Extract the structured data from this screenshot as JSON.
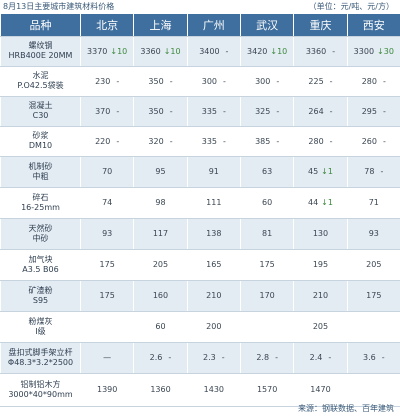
{
  "caption": "8月13日主要城市建筑材料价格",
  "unit": "（单位：元/吨、元/方）",
  "source": "来源：钢联数据、百年建筑",
  "headers": [
    "品种",
    "北京",
    "上海",
    "广州",
    "武汉",
    "重庆",
    "西安"
  ],
  "rows": [
    {
      "name": [
        "螺纹钢",
        "HRB400E 20MM"
      ],
      "cells": [
        {
          "v": "3370",
          "arrow": "↓",
          "dir": "down",
          "d": "10"
        },
        {
          "v": "3360",
          "arrow": "↓",
          "dir": "down",
          "d": "10"
        },
        {
          "v": "3400",
          "sep": "-"
        },
        {
          "v": "3420",
          "arrow": "↓",
          "dir": "down",
          "d": "10"
        },
        {
          "v": "3360",
          "sep": "-"
        },
        {
          "v": "3300",
          "arrow": "↓",
          "dir": "down",
          "d": "30"
        }
      ]
    },
    {
      "name": [
        "水泥",
        "P.O42.5袋装"
      ],
      "cells": [
        {
          "v": "230",
          "sep": "-"
        },
        {
          "v": "350",
          "sep": "-"
        },
        {
          "v": "300",
          "sep": "-"
        },
        {
          "v": "300",
          "sep": "-"
        },
        {
          "v": "225",
          "sep": "-"
        },
        {
          "v": "280",
          "sep": "-"
        }
      ]
    },
    {
      "name": [
        "混凝土",
        "C30"
      ],
      "cells": [
        {
          "v": "370",
          "sep": "-"
        },
        {
          "v": "350",
          "sep": "-"
        },
        {
          "v": "335",
          "sep": "-"
        },
        {
          "v": "325",
          "sep": "-"
        },
        {
          "v": "264",
          "sep": "-"
        },
        {
          "v": "295",
          "sep": "-"
        }
      ]
    },
    {
      "name": [
        "砂浆",
        "DM10"
      ],
      "cells": [
        {
          "v": "220",
          "sep": "-"
        },
        {
          "v": "320",
          "sep": "-"
        },
        {
          "v": "335",
          "sep": "-"
        },
        {
          "v": "385",
          "sep": "-"
        },
        {
          "v": "280",
          "sep": "-"
        },
        {
          "v": "260",
          "sep": "-"
        }
      ]
    },
    {
      "name": [
        "机制砂",
        "中粗"
      ],
      "cells": [
        {
          "v": "70",
          "sep": ""
        },
        {
          "v": "95",
          "sep": ""
        },
        {
          "v": "91",
          "sep": ""
        },
        {
          "v": "63",
          "sep": ""
        },
        {
          "v": "45",
          "arrow": "↓",
          "dir": "down",
          "d": "1"
        },
        {
          "v": "78",
          "sep": "-"
        }
      ]
    },
    {
      "name": [
        "碎石",
        "16-25mm"
      ],
      "cells": [
        {
          "v": "74",
          "sep": ""
        },
        {
          "v": "98",
          "sep": ""
        },
        {
          "v": "111",
          "sep": ""
        },
        {
          "v": "60",
          "sep": ""
        },
        {
          "v": "44",
          "arrow": "↓",
          "dir": "down",
          "d": "1"
        },
        {
          "v": "71",
          "sep": ""
        }
      ]
    },
    {
      "name": [
        "天然砂",
        "中砂"
      ],
      "cells": [
        {
          "v": "93",
          "sep": ""
        },
        {
          "v": "117",
          "sep": ""
        },
        {
          "v": "138",
          "sep": ""
        },
        {
          "v": "81",
          "sep": ""
        },
        {
          "v": "130",
          "sep": ""
        },
        {
          "v": "93",
          "sep": ""
        }
      ]
    },
    {
      "name": [
        "加气块",
        "A3.5 B06"
      ],
      "cells": [
        {
          "v": "175",
          "sep": ""
        },
        {
          "v": "205",
          "sep": ""
        },
        {
          "v": "165",
          "sep": ""
        },
        {
          "v": "175",
          "sep": ""
        },
        {
          "v": "195",
          "sep": ""
        },
        {
          "v": "205",
          "sep": ""
        }
      ]
    },
    {
      "name": [
        "矿渣粉",
        "S95"
      ],
      "cells": [
        {
          "v": "175",
          "sep": ""
        },
        {
          "v": "160",
          "sep": ""
        },
        {
          "v": "210",
          "sep": ""
        },
        {
          "v": "170",
          "sep": ""
        },
        {
          "v": "210",
          "sep": ""
        },
        {
          "v": "175",
          "sep": ""
        }
      ]
    },
    {
      "name": [
        "粉煤灰",
        "I级"
      ],
      "cells": [
        {
          "v": "",
          "sep": ""
        },
        {
          "v": "60",
          "sep": ""
        },
        {
          "v": "200",
          "sep": ""
        },
        {
          "v": "",
          "sep": ""
        },
        {
          "v": "205",
          "sep": ""
        },
        {
          "v": "",
          "sep": ""
        }
      ]
    },
    {
      "name": [
        "盘扣式脚手架立杆",
        "Φ48.3*3.2*2500"
      ],
      "cells": [
        {
          "v": "—",
          "sep": ""
        },
        {
          "v": "2.6",
          "sep": "-"
        },
        {
          "v": "2.3",
          "sep": "-"
        },
        {
          "v": "2.8",
          "sep": "-"
        },
        {
          "v": "2.4",
          "sep": "-"
        },
        {
          "v": "3.6",
          "sep": "-"
        }
      ]
    },
    {
      "name": [
        "铝制铝木方",
        "3000*40*90mm"
      ],
      "cells": [
        {
          "v": "1390",
          "sep": ""
        },
        {
          "v": "1360",
          "sep": ""
        },
        {
          "v": "1430",
          "sep": ""
        },
        {
          "v": "1570",
          "sep": ""
        },
        {
          "v": "1470",
          "sep": ""
        },
        {
          "v": "",
          "sep": ""
        }
      ]
    }
  ]
}
